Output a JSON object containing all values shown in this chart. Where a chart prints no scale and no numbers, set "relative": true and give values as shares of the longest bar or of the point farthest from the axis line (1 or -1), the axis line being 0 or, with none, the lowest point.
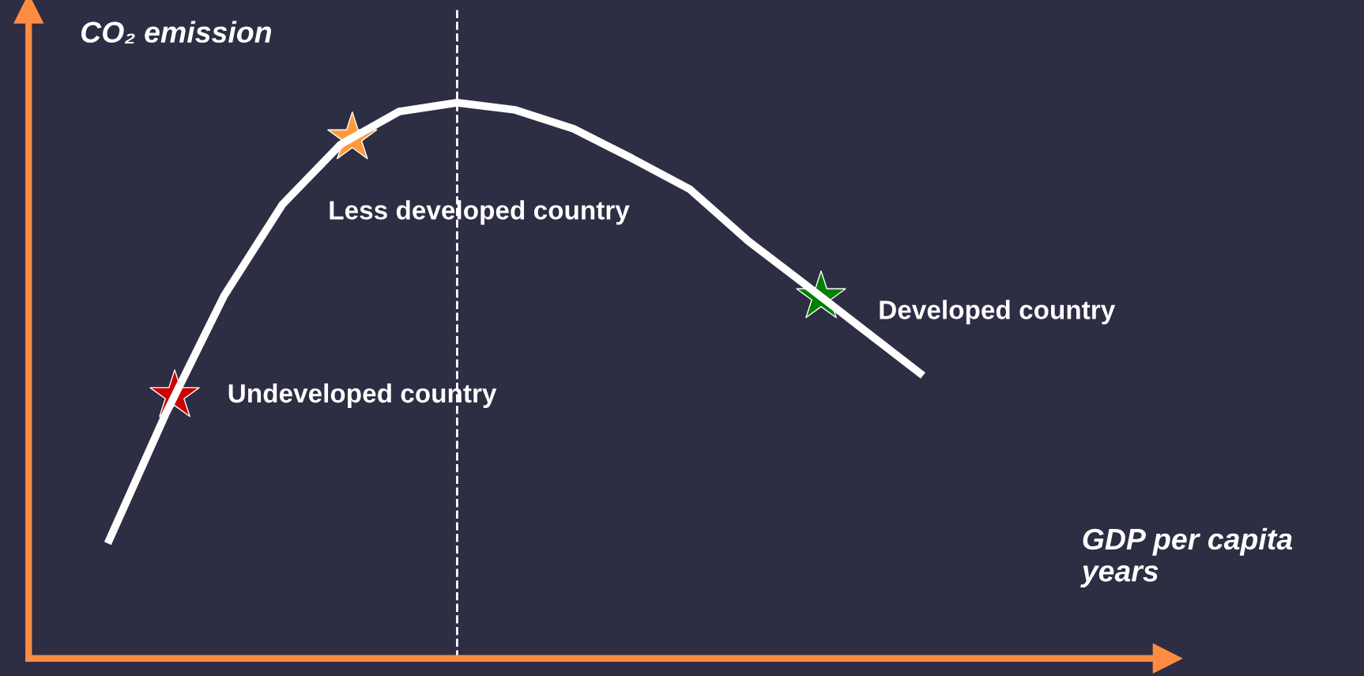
{
  "chart_data": {
    "type": "line",
    "relative": true,
    "ylabel": "CO₂ emission",
    "xlabel": "GDP per capita\nyears",
    "categories": [
      null,
      null,
      null,
      null,
      null,
      null,
      null,
      null,
      null,
      null,
      null,
      null,
      null,
      null,
      null
    ],
    "series": [
      {
        "color": "#ffffff",
        "values": [
          0.207,
          0.441,
          0.653,
          0.817,
          0.925,
          0.984,
          1.0,
          0.987,
          0.953,
          0.9,
          0.844,
          0.751,
          0.671,
          0.59,
          0.509
        ]
      }
    ],
    "annotations": [
      "Undeveloped country",
      "Less developed country",
      "Developed country"
    ]
  }
}
